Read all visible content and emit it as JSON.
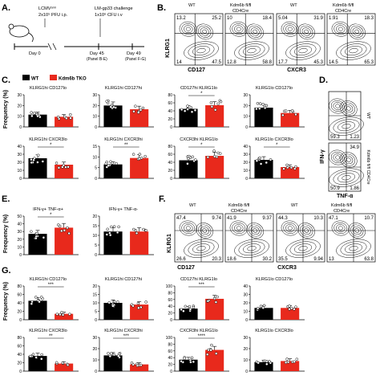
{
  "panels": {
    "a": "A.",
    "b": "B.",
    "c": "C.",
    "d": "D.",
    "e": "E.",
    "f": "F.",
    "g": "G."
  },
  "panel_a": {
    "infection1_title": "LCMVᵃʳᵐ",
    "infection1_dose": "2x10⁵ PFU i.p.",
    "challenge_title": "LM-gp33 challenge",
    "challenge_dose": "1x10⁶ CFU i.v",
    "day0": "Day 0",
    "day45": "Day 45",
    "day45_note": "(Panel B-E)",
    "day49": "Day 49",
    "day49_note": "(Panel F-G)"
  },
  "legend": {
    "wt": "WT",
    "tko": "Kdm6b TKO",
    "wt_color": "#000000",
    "tko_color": "#e8291c"
  },
  "genotypes": {
    "wt": "WT",
    "ko_line1": "Kdm6b fl/fl",
    "ko_line2": "CD4Cre"
  },
  "axes": {
    "klrg1": "KLRG1",
    "cd127": "CD127",
    "cxcr3": "CXCR3",
    "ifng": "IFN-γ",
    "tnfa": "TNF-α",
    "frequency": "Frequency (%)"
  },
  "flow_b": [
    {
      "quad": [
        "13.2",
        "25.2",
        "14",
        "47.5"
      ]
    },
    {
      "quad": [
        "10",
        "18.4",
        "12.8",
        "58.8"
      ]
    },
    {
      "quad": [
        "5.04",
        "31.9",
        "17.7",
        "45.3"
      ]
    },
    {
      "quad": [
        "1.91",
        "18.3",
        "14.5",
        "65.3"
      ]
    }
  ],
  "flow_d": [
    {
      "label": "WT",
      "quad": [
        "",
        "",
        "59.3",
        "1.23"
      ]
    },
    {
      "label": "Kdm6b fl/fl CD4Cre",
      "quad": [
        "",
        "34.9",
        "50.9",
        "1.86"
      ]
    }
  ],
  "flow_f": [
    {
      "quad": [
        "47.4",
        "9.74",
        "26.6",
        "20.3"
      ]
    },
    {
      "quad": [
        "41.9",
        "9.37",
        "18.6",
        "30.2"
      ]
    },
    {
      "quad": [
        "44.3",
        "10.3",
        "35.5",
        "9.94"
      ]
    },
    {
      "quad": [
        "47.1",
        "10.7",
        "13",
        "63.8"
      ]
    }
  ],
  "chart_data": [
    {
      "panel": "C",
      "type": "bar",
      "title": "KLRG1hi CD127lo",
      "ylim": [
        0,
        30
      ],
      "yticks": [
        0,
        10,
        20,
        30
      ],
      "series": [
        {
          "name": "WT",
          "values": [
            11.5
          ]
        },
        {
          "name": "Kdm6b TKO",
          "values": [
            9.5
          ]
        }
      ],
      "sig": ""
    },
    {
      "panel": "C",
      "type": "bar",
      "title": "KLRG1hi CD127hi",
      "ylim": [
        0,
        30
      ],
      "yticks": [
        0,
        10,
        20,
        30
      ],
      "series": [
        {
          "name": "WT",
          "values": [
            20
          ]
        },
        {
          "name": "Kdm6b TKO",
          "values": [
            16.5
          ]
        }
      ],
      "sig": ""
    },
    {
      "panel": "C",
      "type": "bar",
      "title": "CD127hi KLRG1lo",
      "ylim": [
        0,
        80
      ],
      "yticks": [
        0,
        20,
        40,
        60,
        80
      ],
      "series": [
        {
          "name": "WT",
          "values": [
            45
          ]
        },
        {
          "name": "Kdm6b TKO",
          "values": [
            54
          ]
        }
      ],
      "sig": "*"
    },
    {
      "panel": "C",
      "type": "bar",
      "title": "KLRG1lo CD127lo",
      "ylim": [
        0,
        30
      ],
      "yticks": [
        0,
        10,
        20,
        30
      ],
      "series": [
        {
          "name": "WT",
          "values": [
            18
          ]
        },
        {
          "name": "Kdm6b TKO",
          "values": [
            13
          ]
        }
      ],
      "sig": ""
    },
    {
      "panel": "C",
      "type": "bar",
      "title": "KLRG1hi CXCR3lo",
      "ylim": [
        0,
        40
      ],
      "yticks": [
        0,
        10,
        20,
        30,
        40
      ],
      "series": [
        {
          "name": "WT",
          "values": [
            25
          ]
        },
        {
          "name": "Kdm6b TKO",
          "values": [
            17
          ]
        }
      ],
      "sig": "*"
    },
    {
      "panel": "C",
      "type": "bar",
      "title": "KLRG1hi CXCR3hi",
      "ylim": [
        0,
        15
      ],
      "yticks": [
        0,
        5,
        10,
        15
      ],
      "series": [
        {
          "name": "WT",
          "values": [
            6.5
          ]
        },
        {
          "name": "Kdm6b TKO",
          "values": [
            9.5
          ]
        }
      ],
      "sig": "**"
    },
    {
      "panel": "C",
      "type": "bar",
      "title": "CXCR3hi KLRG1lo",
      "ylim": [
        0,
        80
      ],
      "yticks": [
        0,
        20,
        40,
        60,
        80
      ],
      "series": [
        {
          "name": "WT",
          "values": [
            45
          ]
        },
        {
          "name": "Kdm6b TKO",
          "values": [
            56
          ]
        }
      ],
      "sig": "*"
    },
    {
      "panel": "C",
      "type": "bar",
      "title": "KLRG1lo CXCR3lo",
      "ylim": [
        0,
        40
      ],
      "yticks": [
        0,
        10,
        20,
        30,
        40
      ],
      "series": [
        {
          "name": "WT",
          "values": [
            23
          ]
        },
        {
          "name": "Kdm6b TKO",
          "values": [
            14
          ]
        }
      ],
      "sig": "*"
    },
    {
      "panel": "E",
      "type": "bar",
      "title": "IFN-γ+ TNF-α+",
      "ylim": [
        0,
        50
      ],
      "yticks": [
        0,
        10,
        20,
        30,
        40,
        50
      ],
      "series": [
        {
          "name": "WT",
          "values": [
            27
          ]
        },
        {
          "name": "Kdm6b TKO",
          "values": [
            35
          ]
        }
      ],
      "sig": "*"
    },
    {
      "panel": "E",
      "type": "bar",
      "title": "IFN-γ+ TNF-α-",
      "ylim": [
        0,
        20
      ],
      "yticks": [
        0,
        5,
        10,
        15,
        20
      ],
      "series": [
        {
          "name": "WT",
          "values": [
            12
          ]
        },
        {
          "name": "Kdm6b TKO",
          "values": [
            12
          ]
        }
      ],
      "sig": ""
    },
    {
      "panel": "G",
      "type": "bar",
      "title": "KLRG1hi CD127lo",
      "ylim": [
        0,
        80
      ],
      "yticks": [
        0,
        20,
        40,
        60,
        80
      ],
      "series": [
        {
          "name": "WT",
          "values": [
            45
          ]
        },
        {
          "name": "Kdm6b TKO",
          "values": [
            14
          ]
        }
      ],
      "sig": "***"
    },
    {
      "panel": "G",
      "type": "bar",
      "title": "KLRG1hi CD127hi",
      "ylim": [
        0,
        20
      ],
      "yticks": [
        0,
        5,
        10,
        15,
        20
      ],
      "series": [
        {
          "name": "WT",
          "values": [
            10
          ]
        },
        {
          "name": "Kdm6b TKO",
          "values": [
            9
          ]
        }
      ],
      "sig": ""
    },
    {
      "panel": "G",
      "type": "bar",
      "title": "CD127hi KLRG1lo",
      "ylim": [
        0,
        100
      ],
      "yticks": [
        0,
        20,
        40,
        60,
        80,
        100
      ],
      "series": [
        {
          "name": "WT",
          "values": [
            33
          ]
        },
        {
          "name": "Kdm6b TKO",
          "values": [
            62
          ]
        }
      ],
      "sig": "***"
    },
    {
      "panel": "G",
      "type": "bar",
      "title": "KLRG1lo CD127lo",
      "ylim": [
        0,
        40
      ],
      "yticks": [
        0,
        10,
        20,
        30,
        40
      ],
      "series": [
        {
          "name": "WT",
          "values": [
            14
          ]
        },
        {
          "name": "Kdm6b TKO",
          "values": [
            14
          ]
        }
      ],
      "sig": ""
    },
    {
      "panel": "G",
      "type": "bar",
      "title": "KLRG1hi CXCR3lo",
      "ylim": [
        0,
        80
      ],
      "yticks": [
        0,
        20,
        40,
        60,
        80
      ],
      "series": [
        {
          "name": "WT",
          "values": [
            36
          ]
        },
        {
          "name": "Kdm6b TKO",
          "values": [
            18
          ]
        }
      ],
      "sig": "**"
    },
    {
      "panel": "G",
      "type": "bar",
      "title": "KLRG1hi CXCR3hi",
      "ylim": [
        0,
        30
      ],
      "yticks": [
        0,
        10,
        20,
        30
      ],
      "series": [
        {
          "name": "WT",
          "values": [
            14
          ]
        },
        {
          "name": "Kdm6b TKO",
          "values": [
            6
          ]
        }
      ],
      "sig": "***"
    },
    {
      "panel": "G",
      "type": "bar",
      "title": "CXCR3hi KLRG1lo",
      "ylim": [
        0,
        100
      ],
      "yticks": [
        0,
        20,
        40,
        60,
        80,
        100
      ],
      "series": [
        {
          "name": "WT",
          "values": [
            34
          ]
        },
        {
          "name": "Kdm6b TKO",
          "values": [
            63
          ]
        }
      ],
      "sig": "****"
    },
    {
      "panel": "G",
      "type": "bar",
      "title": "KLRG1lo CXCR3lo",
      "ylim": [
        0,
        30
      ],
      "yticks": [
        0,
        10,
        20,
        30
      ],
      "series": [
        {
          "name": "WT",
          "values": [
            8
          ]
        },
        {
          "name": "Kdm6b TKO",
          "values": [
            9
          ]
        }
      ],
      "sig": ""
    }
  ]
}
